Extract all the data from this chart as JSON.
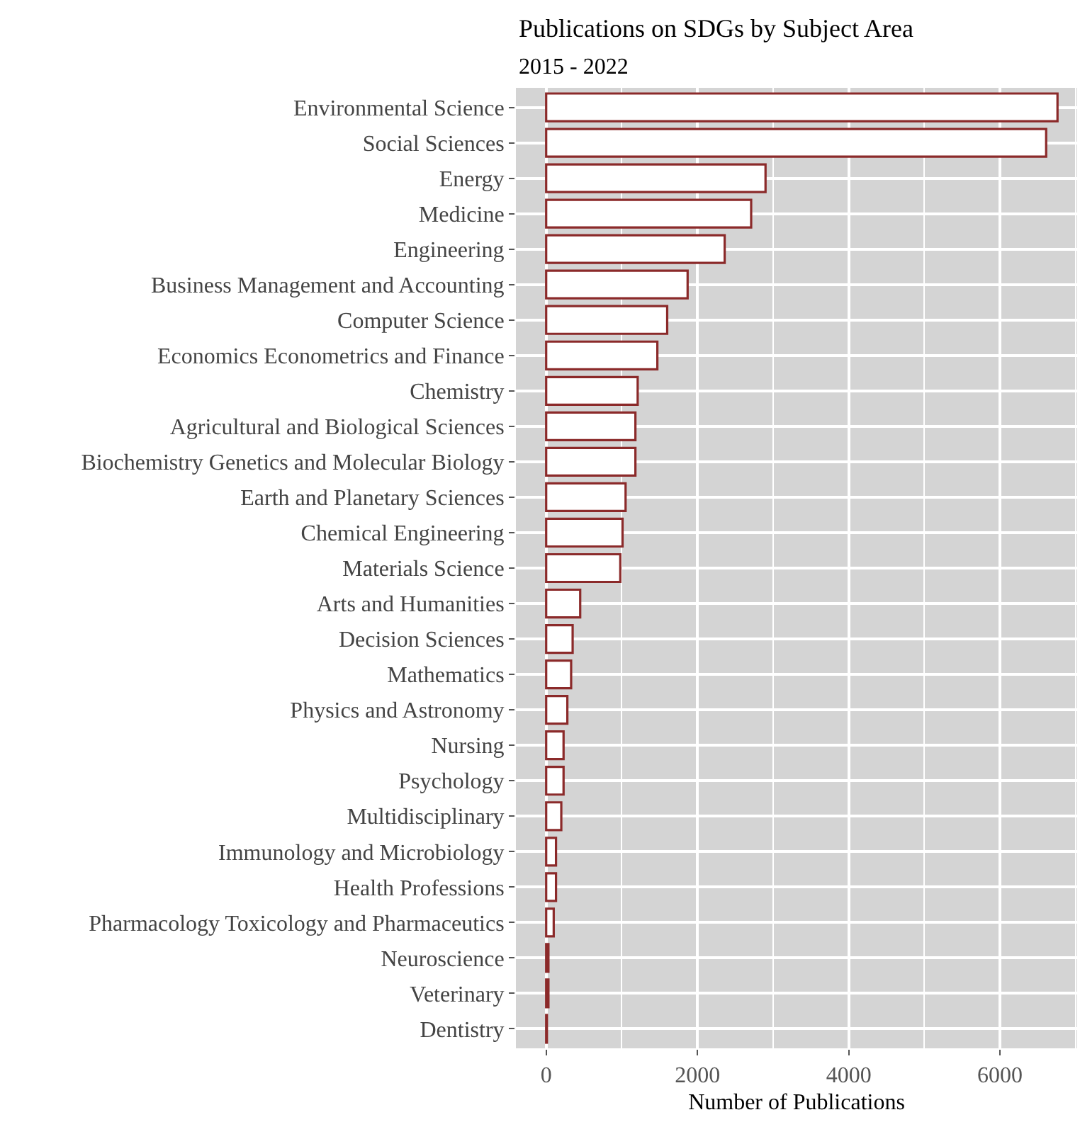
{
  "chart_data": {
    "type": "bar",
    "orientation": "horizontal",
    "title": "Publications on SDGs by Subject Area",
    "subtitle": "2015 - 2022",
    "xlabel": "Number of Publications",
    "categories": [
      "Environmental Science",
      "Social Sciences",
      "Energy",
      "Medicine",
      "Engineering",
      "Business Management and Accounting",
      "Computer Science",
      "Economics Econometrics and Finance",
      "Chemistry",
      "Agricultural and Biological Sciences",
      "Biochemistry Genetics and Molecular Biology",
      "Earth and Planetary Sciences",
      "Chemical Engineering",
      "Materials Science",
      "Arts and Humanities",
      "Decision Sciences",
      "Mathematics",
      "Physics and Astronomy",
      "Nursing",
      "Psychology",
      "Multidisciplinary",
      "Immunology and Microbiology",
      "Health Professions",
      "Pharmacology Toxicology and Pharmaceutics",
      "Neuroscience",
      "Veterinary",
      "Dentistry"
    ],
    "values": [
      6760,
      6610,
      2900,
      2710,
      2360,
      1870,
      1600,
      1470,
      1210,
      1180,
      1180,
      1050,
      1010,
      980,
      450,
      350,
      330,
      280,
      230,
      230,
      200,
      130,
      130,
      100,
      30,
      30,
      10
    ],
    "color": "#ffffff",
    "xlim": [
      -400,
      7020
    ],
    "xticks": [
      0,
      2000,
      4000,
      6000
    ],
    "grid": true
  }
}
